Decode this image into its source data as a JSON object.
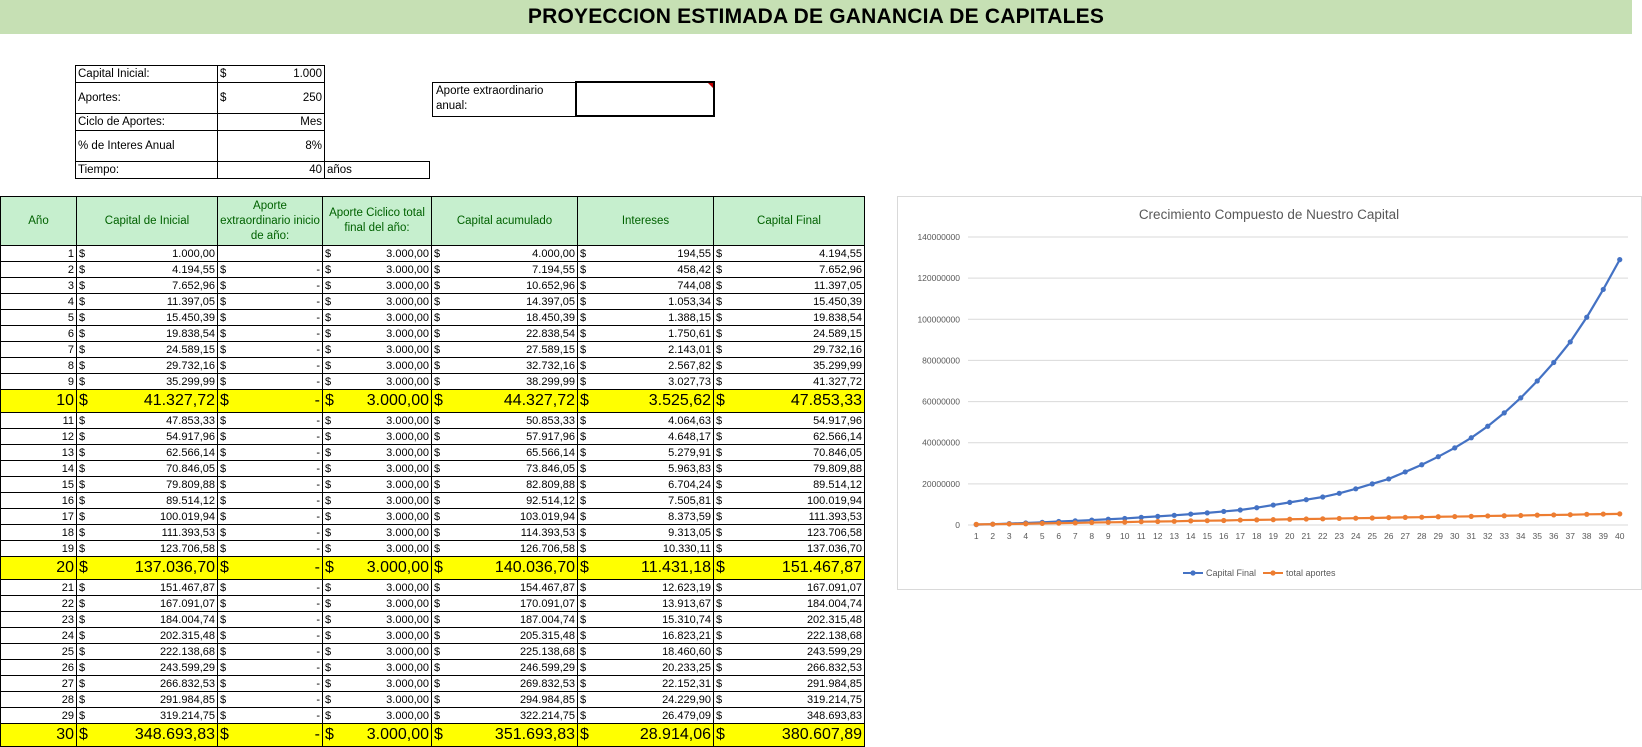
{
  "title": "PROYECCION ESTIMADA DE GANANCIA DE CAPITALES",
  "params": {
    "capital_inicial_label": "Capital Inicial:",
    "capital_inicial_currency": "$",
    "capital_inicial_value": "1.000",
    "aportes_label": "Aportes:",
    "aportes_currency": "$",
    "aportes_value": "250",
    "ciclo_label": "Ciclo de Aportes:",
    "ciclo_value": "Mes",
    "interes_label": "% de Interes Anual",
    "interes_value": "8%",
    "tiempo_label": "Tiempo:",
    "tiempo_value": "40",
    "tiempo_unit": "años"
  },
  "extra": {
    "label": "Aporte extraordinario anual:",
    "value": ""
  },
  "table": {
    "headers": [
      "Año",
      "Capital de Inicial",
      "Aporte extraordinario inicio de año:",
      "Aporte Ciclico total final del año:",
      "Capital acumulado",
      "Intereses",
      "Capital Final"
    ],
    "currency": "$",
    "rows": [
      [
        "1",
        "1.000,00",
        "",
        "3.000,00",
        "4.000,00",
        "194,55",
        "4.194,55"
      ],
      [
        "2",
        "4.194,55",
        "-",
        "3.000,00",
        "7.194,55",
        "458,42",
        "7.652,96"
      ],
      [
        "3",
        "7.652,96",
        "-",
        "3.000,00",
        "10.652,96",
        "744,08",
        "11.397,05"
      ],
      [
        "4",
        "11.397,05",
        "-",
        "3.000,00",
        "14.397,05",
        "1.053,34",
        "15.450,39"
      ],
      [
        "5",
        "15.450,39",
        "-",
        "3.000,00",
        "18.450,39",
        "1.388,15",
        "19.838,54"
      ],
      [
        "6",
        "19.838,54",
        "-",
        "3.000,00",
        "22.838,54",
        "1.750,61",
        "24.589,15"
      ],
      [
        "7",
        "24.589,15",
        "-",
        "3.000,00",
        "27.589,15",
        "2.143,01",
        "29.732,16"
      ],
      [
        "8",
        "29.732,16",
        "-",
        "3.000,00",
        "32.732,16",
        "2.567,82",
        "35.299,99"
      ],
      [
        "9",
        "35.299,99",
        "-",
        "3.000,00",
        "38.299,99",
        "3.027,73",
        "41.327,72"
      ],
      [
        "10",
        "41.327,72",
        "-",
        "3.000,00",
        "44.327,72",
        "3.525,62",
        "47.853,33"
      ],
      [
        "11",
        "47.853,33",
        "-",
        "3.000,00",
        "50.853,33",
        "4.064,63",
        "54.917,96"
      ],
      [
        "12",
        "54.917,96",
        "-",
        "3.000,00",
        "57.917,96",
        "4.648,17",
        "62.566,14"
      ],
      [
        "13",
        "62.566,14",
        "-",
        "3.000,00",
        "65.566,14",
        "5.279,91",
        "70.846,05"
      ],
      [
        "14",
        "70.846,05",
        "-",
        "3.000,00",
        "73.846,05",
        "5.963,83",
        "79.809,88"
      ],
      [
        "15",
        "79.809,88",
        "-",
        "3.000,00",
        "82.809,88",
        "6.704,24",
        "89.514,12"
      ],
      [
        "16",
        "89.514,12",
        "-",
        "3.000,00",
        "92.514,12",
        "7.505,81",
        "100.019,94"
      ],
      [
        "17",
        "100.019,94",
        "-",
        "3.000,00",
        "103.019,94",
        "8.373,59",
        "111.393,53"
      ],
      [
        "18",
        "111.393,53",
        "-",
        "3.000,00",
        "114.393,53",
        "9.313,05",
        "123.706,58"
      ],
      [
        "19",
        "123.706,58",
        "-",
        "3.000,00",
        "126.706,58",
        "10.330,11",
        "137.036,70"
      ],
      [
        "20",
        "137.036,70",
        "-",
        "3.000,00",
        "140.036,70",
        "11.431,18",
        "151.467,87"
      ],
      [
        "21",
        "151.467,87",
        "-",
        "3.000,00",
        "154.467,87",
        "12.623,19",
        "167.091,07"
      ],
      [
        "22",
        "167.091,07",
        "-",
        "3.000,00",
        "170.091,07",
        "13.913,67",
        "184.004,74"
      ],
      [
        "23",
        "184.004,74",
        "-",
        "3.000,00",
        "187.004,74",
        "15.310,74",
        "202.315,48"
      ],
      [
        "24",
        "202.315,48",
        "-",
        "3.000,00",
        "205.315,48",
        "16.823,21",
        "222.138,68"
      ],
      [
        "25",
        "222.138,68",
        "-",
        "3.000,00",
        "225.138,68",
        "18.460,60",
        "243.599,29"
      ],
      [
        "26",
        "243.599,29",
        "-",
        "3.000,00",
        "246.599,29",
        "20.233,25",
        "266.832,53"
      ],
      [
        "27",
        "266.832,53",
        "-",
        "3.000,00",
        "269.832,53",
        "22.152,31",
        "291.984,85"
      ],
      [
        "28",
        "291.984,85",
        "-",
        "3.000,00",
        "294.984,85",
        "24.229,90",
        "319.214,75"
      ],
      [
        "29",
        "319.214,75",
        "-",
        "3.000,00",
        "322.214,75",
        "26.479,09",
        "348.693,83"
      ],
      [
        "30",
        "348.693,83",
        "-",
        "3.000,00",
        "351.693,83",
        "28.914,06",
        "380.607,89"
      ]
    ],
    "highlight_rows": [
      "10",
      "20",
      "30"
    ],
    "highlight_color": "#ffff00",
    "header_bg": "#c6efce",
    "header_color": "#006100"
  },
  "chart_data": {
    "type": "line",
    "title": "Crecimiento Compuesto de Nuestro Capital",
    "categories": [
      "1",
      "2",
      "3",
      "4",
      "5",
      "6",
      "7",
      "8",
      "9",
      "10",
      "11",
      "12",
      "13",
      "14",
      "15",
      "16",
      "17",
      "18",
      "19",
      "20",
      "21",
      "22",
      "23",
      "24",
      "25",
      "26",
      "27",
      "28",
      "29",
      "30",
      "31",
      "32",
      "33",
      "34",
      "35",
      "36",
      "37",
      "38",
      "39",
      "40"
    ],
    "y_ticks": [
      "0",
      "20000000",
      "40000000",
      "60000000",
      "80000000",
      "100000000",
      "120000000",
      "140000000"
    ],
    "ylim": [
      0,
      140000000
    ],
    "grid": true,
    "legend_position": "bottom",
    "series": [
      {
        "name": "Capital Final",
        "color": "#4472c4",
        "values": [
          200000,
          400000,
          700000,
          1000000,
          1300000,
          1700000,
          2000000,
          2400000,
          2800000,
          3200000,
          3700000,
          4200000,
          4700000,
          5300000,
          5900000,
          6600000,
          7300000,
          8400000,
          9700000,
          11000000,
          12300000,
          13600000,
          15400000,
          17600000,
          20000000,
          22400000,
          25800000,
          29300000,
          33200000,
          37500000,
          42400000,
          48000000,
          54500000,
          61800000,
          70000000,
          79000000,
          89000000,
          101000000,
          114500000,
          129000000
        ]
      },
      {
        "name": "total aportes",
        "color": "#ed7d31",
        "values": [
          300000,
          400000,
          500000,
          600000,
          800000,
          900000,
          1000000,
          1200000,
          1300000,
          1400000,
          1600000,
          1700000,
          1800000,
          2000000,
          2100000,
          2200000,
          2400000,
          2500000,
          2600000,
          2800000,
          2900000,
          3000000,
          3200000,
          3300000,
          3400000,
          3600000,
          3700000,
          3800000,
          4000000,
          4100000,
          4200000,
          4400000,
          4500000,
          4600000,
          4800000,
          4900000,
          5000000,
          5200000,
          5300000,
          5400000
        ]
      }
    ]
  }
}
